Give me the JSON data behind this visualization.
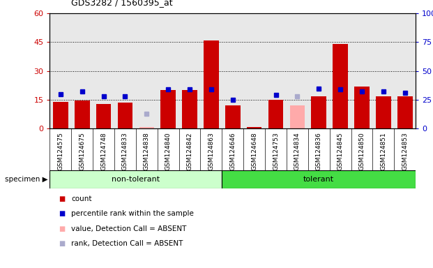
{
  "title": "GDS3282 / 1560395_at",
  "samples": [
    "GSM124575",
    "GSM124675",
    "GSM124748",
    "GSM124833",
    "GSM124838",
    "GSM124840",
    "GSM124842",
    "GSM124863",
    "GSM124646",
    "GSM124648",
    "GSM124753",
    "GSM124834",
    "GSM124836",
    "GSM124845",
    "GSM124850",
    "GSM124851",
    "GSM124853"
  ],
  "n_nontol": 8,
  "count_values": [
    14,
    14.5,
    13,
    13.5,
    null,
    20,
    20,
    46,
    12,
    1,
    15,
    null,
    17,
    44,
    22,
    17,
    17
  ],
  "count_absent": [
    null,
    null,
    null,
    null,
    0.8,
    null,
    null,
    null,
    null,
    null,
    null,
    12,
    null,
    null,
    null,
    null,
    null
  ],
  "rank_values": [
    30,
    32,
    28,
    28,
    null,
    34,
    34,
    34,
    25,
    null,
    29,
    null,
    35,
    34,
    32,
    32,
    31
  ],
  "rank_absent": [
    null,
    null,
    null,
    null,
    13,
    null,
    null,
    null,
    null,
    null,
    null,
    28,
    null,
    null,
    null,
    null,
    null
  ],
  "count_color": "#cc0000",
  "count_absent_color": "#ffaaaa",
  "rank_color": "#0000cc",
  "rank_absent_color": "#aaaacc",
  "plot_bg_color": "#e8e8e8",
  "label_bg_color": "#d8d8d8",
  "group_nontol_color": "#ccffcc",
  "group_tol_color": "#44dd44",
  "ylim_left": [
    0,
    60
  ],
  "ylim_right": [
    0,
    100
  ],
  "yticks_left": [
    0,
    15,
    30,
    45,
    60
  ],
  "yticks_right": [
    0,
    25,
    50,
    75,
    100
  ],
  "legend_items": [
    {
      "label": "count",
      "color": "#cc0000"
    },
    {
      "label": "percentile rank within the sample",
      "color": "#0000cc"
    },
    {
      "label": "value, Detection Call = ABSENT",
      "color": "#ffaaaa"
    },
    {
      "label": "rank, Detection Call = ABSENT",
      "color": "#aaaacc"
    }
  ]
}
